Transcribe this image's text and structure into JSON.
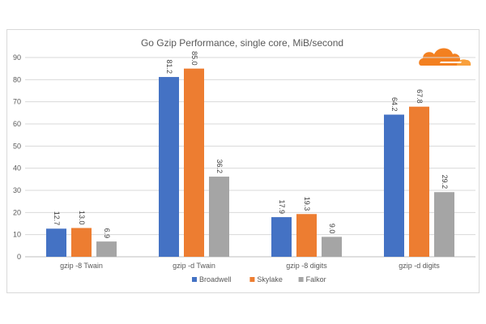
{
  "chart_data": {
    "type": "bar",
    "title": "Go Gzip Performance, single core, MiB/second",
    "categories": [
      "gzip -8 Twain",
      "gzip -d Twain",
      "gzip -8 digits",
      "gzip -d digits"
    ],
    "series": [
      {
        "name": "Broadwell",
        "color": "#4472c4",
        "values": [
          12.7,
          81.2,
          17.9,
          64.2
        ]
      },
      {
        "name": "Skylake",
        "color": "#ed7d31",
        "values": [
          13.0,
          85.0,
          19.3,
          67.8
        ]
      },
      {
        "name": "Falkor",
        "color": "#a5a5a5",
        "values": [
          6.9,
          36.2,
          9.0,
          29.2
        ]
      }
    ],
    "ylim": [
      0,
      90
    ],
    "yticks": [
      0,
      10,
      20,
      30,
      40,
      50,
      60,
      70,
      80,
      90
    ],
    "grid": true,
    "legend": "bottom",
    "logo": "cloudflare-cloud-logo",
    "logo_color": "#f38020"
  }
}
